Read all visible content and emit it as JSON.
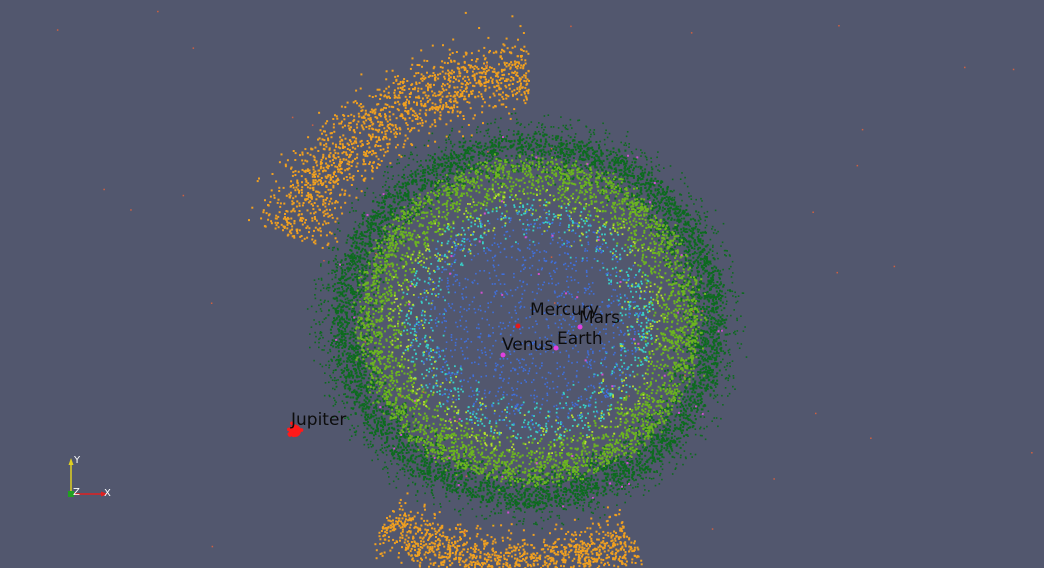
{
  "view": {
    "background": "#52576e"
  },
  "planets": {
    "mercury": {
      "label": "Mercury",
      "color": "#e31a1c"
    },
    "venus": {
      "label": "Venus",
      "color": "#e040e0"
    },
    "earth": {
      "label": "Earth",
      "color": "#e040e0"
    },
    "mars": {
      "label": "Mars",
      "color": "#e040e0"
    },
    "jupiter": {
      "label": "Jupiter",
      "color": "#ff1a1a"
    }
  },
  "axes": {
    "x_label": "X",
    "y_label": "Y",
    "z_label": "Z",
    "x_color": "#e02020",
    "y_color": "#e0d020",
    "z_color": "#20a020"
  },
  "particle_colors": {
    "outer_belt": "#0d6b1f",
    "main_belt": "#6cb520",
    "inner_ring": "#38d0c8",
    "inner_core": "#3f6fdc",
    "trojans": "#f0a020",
    "highlight": "#b8e030",
    "stray": "#d06040"
  }
}
